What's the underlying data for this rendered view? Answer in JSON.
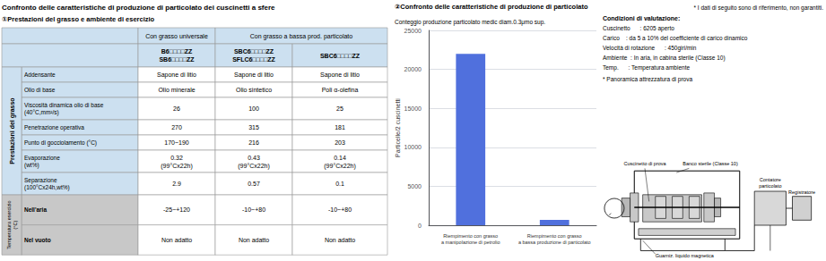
{
  "chart_data": [
    {
      "type": "table",
      "title": "Confronto delle caratteristiche di produzione di particolato dei cuscinetti a sfere",
      "subtitle": "①Prestazioni del grasso e ambiente di esercizio",
      "color": "#cce0f0",
      "column_groups": [
        {
          "label": "Con grasso universale",
          "columns": [
            "B6□□□□ZZ\nSB6□□□□ZZ"
          ]
        },
        {
          "label": "Con grasso a bassa prod. particolato",
          "columns": [
            "SBC6□□□□ZZ\nSFLC6□□□□ZZ",
            "SBC6□□□□ZZ"
          ]
        }
      ],
      "row_groups": [
        {
          "label": "Prestazioni del grasso",
          "color": "#cce0f0",
          "rows": [
            [
              "Addensante",
              "Sapone di litio",
              "Sapone di litio",
              "Sapone di litio"
            ],
            [
              "Olio di base",
              "Olio minerale",
              "Olio sintetico",
              "Poli α-olefina"
            ],
            [
              "Viscosità dinamica olio di base\n(40°C,mm²/s)",
              "26",
              "100",
              "25"
            ],
            [
              "Penetrazione operativa",
              "270",
              "315",
              "181"
            ],
            [
              "Punto di gocciolamento (°C)",
              "170~190",
              "216",
              "203"
            ],
            [
              "Evaporazione\n(wt%)",
              "0.32\n(99°Cx22h)",
              "0.43\n(99°Cx22h)",
              "0.14\n(99°Cx22h)"
            ],
            [
              "Separazione\n(100°Cx24h,wt%)",
              "2.9",
              "0.57",
              "0.1"
            ]
          ]
        },
        {
          "label": "Temperatura esercizio\n(°C)",
          "color": "#c8c8c8",
          "rows": [
            [
              "Nell'aria",
              "-25~+120",
              "-10~+80",
              "-10~+80"
            ],
            [
              "Nel vuoto",
              "Non adatto",
              "Non adatto",
              "Non adatto"
            ]
          ]
        }
      ]
    },
    {
      "type": "bar",
      "title": "Conteggio produzione particolato medic diam.0.3μmo sup.",
      "subtitle": "②Confronto delle caratteristiche di produzione di particolato",
      "ylabel": "Particelle/2 cuscinetti",
      "categories": [
        "Riempimento con grasso\na manipolazione di petrolio",
        "Riempimento con grasso\na bassa produzione di particolato"
      ],
      "values": [
        22000,
        700
      ],
      "ylim": [
        0,
        25000
      ],
      "yticks": [
        0,
        5000,
        10000,
        15000,
        20000,
        25000
      ],
      "grid": true,
      "annotations": [
        "* I dati di seguito sono di riferimento, non garantiti."
      ]
    },
    {
      "type": "diagram",
      "title": "Condizioni di valutazione:",
      "annotations": [
        "Cuscinetto      : 6205 aperto",
        "Carico    : da 5 a 10% del coefficiente di carico dinamico",
        "Velocità di rotazione      : 450giri/min",
        "Ambiente  : In aria, in cabina sterile (Classe 10)",
        "Temp.      : Temperatura ambiente",
        "* Panoramica attrezzatura di prova"
      ],
      "labels": [
        "Cuscinetto di prova",
        "Banco sterile (Classe 10)",
        "Contatore\nparticolato",
        "Registratore",
        "Guarniz. liquido magnetica"
      ]
    }
  ]
}
